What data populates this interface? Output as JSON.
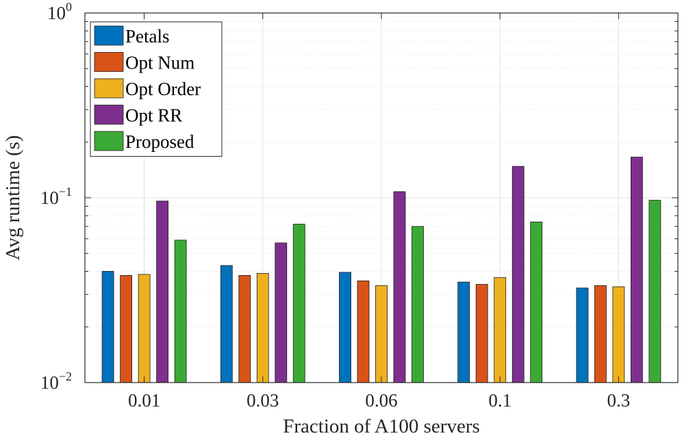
{
  "chart_data": {
    "type": "bar",
    "title": "",
    "xlabel": "Fraction of A100 servers",
    "ylabel": "Avg runtime (s)",
    "yscale": "log",
    "ylim": [
      0.01,
      1
    ],
    "grid": true,
    "legend_position": "top-left",
    "categories": [
      "0.01",
      "0.03",
      "0.06",
      "0.1",
      "0.3"
    ],
    "yticks": [
      {
        "value": 1,
        "base": "10",
        "exp": "0"
      },
      {
        "value": 0.1,
        "base": "10",
        "exp": "−1"
      },
      {
        "value": 0.01,
        "base": "10",
        "exp": "−2"
      }
    ],
    "series": [
      {
        "name": "Petals",
        "color": "#0072BD",
        "values": [
          0.04,
          0.043,
          0.0395,
          0.035,
          0.0325
        ]
      },
      {
        "name": "Opt Num",
        "color": "#D95319",
        "values": [
          0.038,
          0.038,
          0.0355,
          0.034,
          0.0335
        ]
      },
      {
        "name": "Opt Order",
        "color": "#EDB120",
        "values": [
          0.0385,
          0.039,
          0.0335,
          0.037,
          0.033
        ]
      },
      {
        "name": "Opt RR",
        "color": "#7E2F8E",
        "values": [
          0.096,
          0.057,
          0.108,
          0.148,
          0.166
        ]
      },
      {
        "name": "Proposed",
        "color": "#3BAA35",
        "values": [
          0.059,
          0.072,
          0.07,
          0.074,
          0.097
        ]
      }
    ]
  }
}
